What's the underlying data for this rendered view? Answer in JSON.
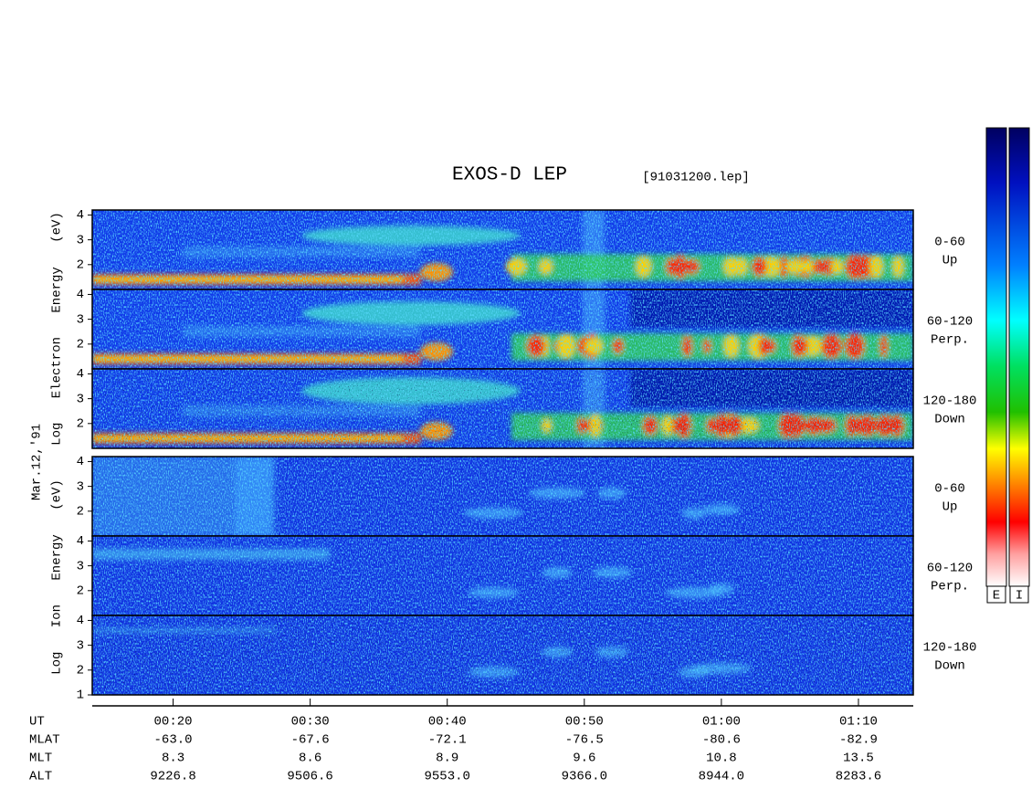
{
  "title": "EXOS-D LEP",
  "file": "[91031200.lep]",
  "colorbar_labels": [
    "E",
    "I"
  ],
  "electron_axis_label": "Log Electron Energy (eV)",
  "ion_axis_label": "Log Ion Energy (eV)",
  "date": "Mar.12,'91",
  "ylim": [
    1,
    4.2
  ],
  "xlim": [
    14.1,
    74
  ],
  "ut_label": "UT",
  "xticks": [
    {
      "value": 20,
      "label": "00:20"
    },
    {
      "value": 30,
      "label": "00:30"
    },
    {
      "value": 40,
      "label": "00:40"
    },
    {
      "value": 50,
      "label": "00:50"
    },
    {
      "value": 60,
      "label": "01:00"
    },
    {
      "value": 70,
      "label": "01:10"
    }
  ],
  "electron_panels": [
    {
      "angle": "0-60",
      "direction": "Up",
      "yticks": [
        2,
        3,
        4
      ]
    },
    {
      "angle": "60-120",
      "direction": "Perp.",
      "yticks": [
        2,
        3,
        4
      ]
    },
    {
      "angle": "120-180",
      "direction": "Down",
      "yticks": [
        2,
        3,
        4
      ]
    }
  ],
  "ion_panels": [
    {
      "angle": "0-60",
      "direction": "Up",
      "yticks": [
        2,
        3,
        4
      ]
    },
    {
      "angle": "60-120",
      "direction": "Perp.",
      "yticks": [
        2,
        3,
        4
      ]
    },
    {
      "angle": "120-180",
      "direction": "Down",
      "yticks": [
        1,
        2,
        3,
        4
      ]
    }
  ],
  "rows": [
    {
      "label": "MLAT",
      "values": [
        "-63.0",
        "-67.6",
        "-72.1",
        "-76.5",
        "-80.6",
        "-82.9"
      ]
    },
    {
      "label": "MLT",
      "values": [
        "8.3",
        "8.6",
        "8.9",
        "9.6",
        "10.8",
        "13.5"
      ]
    },
    {
      "label": "ALT",
      "values": [
        "9226.8",
        "9506.6",
        "9553.0",
        "9366.0",
        "8944.0",
        "8283.6"
      ]
    }
  ]
}
